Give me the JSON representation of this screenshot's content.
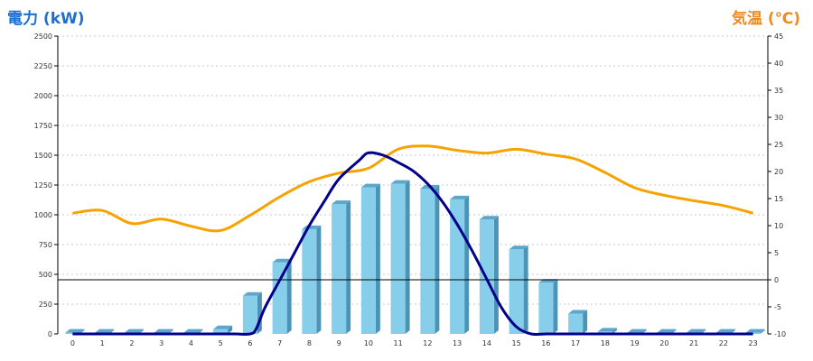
{
  "chart_data": {
    "type": "bar",
    "title_left": "電力 (kW)",
    "title_right": "気温 (℃)",
    "categories": [
      "0",
      "1",
      "2",
      "3",
      "4",
      "5",
      "6",
      "7",
      "8",
      "9",
      "10",
      "11",
      "12",
      "13",
      "14",
      "15",
      "16",
      "17",
      "18",
      "19",
      "20",
      "21",
      "22",
      "23"
    ],
    "y_left": {
      "min": 0,
      "max": 2500,
      "ticks": [
        "0",
        "250",
        "500",
        "750",
        "1000",
        "1250",
        "1500",
        "1750",
        "2000",
        "2250",
        "2500"
      ]
    },
    "y_right": {
      "min": -10,
      "max": 45,
      "ticks": [
        "-10",
        "-5",
        "0",
        "5",
        "10",
        "15",
        "20",
        "25",
        "30",
        "35",
        "40",
        "45"
      ]
    },
    "grid": true,
    "series": [
      {
        "kind": "bar",
        "axis": "left",
        "color": "#87ceeb",
        "values": [
          10,
          10,
          10,
          10,
          10,
          40,
          320,
          600,
          880,
          1090,
          1230,
          1260,
          1220,
          1130,
          960,
          710,
          430,
          170,
          20,
          10,
          10,
          10,
          10,
          10
        ]
      },
      {
        "kind": "line",
        "axis": "left",
        "color": "#00008b",
        "smooth": true,
        "values": [
          0,
          0,
          0,
          0,
          0,
          0,
          0,
          0,
          0,
          40,
          220,
          450,
          680,
          910,
          1110,
          1300,
          1460,
          1520,
          1500,
          1440,
          1370,
          1260,
          1110,
          920,
          700,
          460,
          220,
          60,
          0,
          0,
          0,
          0,
          0,
          0,
          0,
          0,
          0,
          0,
          0,
          0,
          0,
          0,
          0,
          0,
          0,
          0,
          0
        ],
        "x": [
          0,
          1,
          2,
          3,
          4,
          4.8,
          5,
          5.5,
          6,
          6.2,
          6.5,
          7,
          7.5,
          8,
          8.5,
          9,
          9.7,
          10,
          10.5,
          11,
          11.5,
          12,
          12.5,
          13,
          13.5,
          14,
          14.5,
          15,
          15.5,
          16,
          16.5,
          17,
          17.5,
          17.7,
          18,
          18.5,
          19,
          19.5,
          20,
          20.5,
          21,
          21.5,
          22,
          22.5,
          23,
          23,
          23
        ]
      },
      {
        "kind": "line",
        "axis": "right",
        "color": "#f5a300",
        "values": [
          12.3,
          12.8,
          10.4,
          11.2,
          9.9,
          9.1,
          11.9,
          15.3,
          18.1,
          19.7,
          20.6,
          24.1,
          24.7,
          23.9,
          23.4,
          24.1,
          23.2,
          22.3,
          19.8,
          17.0,
          15.6,
          14.6,
          13.7,
          12.3
        ]
      }
    ]
  }
}
